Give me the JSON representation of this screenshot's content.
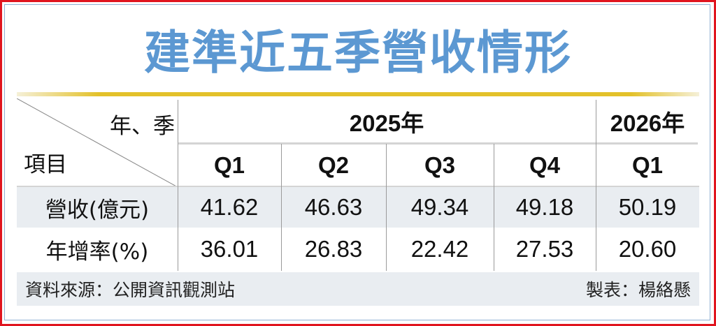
{
  "title": "建準近五季營收情形",
  "colors": {
    "title": "#5c98d2",
    "frame": "#e0141e",
    "rule": "#e3c12a",
    "row_shade": "#e9edf1"
  },
  "table": {
    "corner_top": "年、季",
    "corner_bottom": "項目",
    "years": [
      {
        "label": "2025年"
      },
      {
        "label": "2026年"
      }
    ],
    "quarters": [
      "Q1",
      "Q2",
      "Q3",
      "Q4",
      "Q1"
    ],
    "rows": [
      {
        "label": "營收(億元)",
        "values": [
          "41.62",
          "46.63",
          "49.34",
          "49.18",
          "50.19"
        ]
      },
      {
        "label": "年增率(%)",
        "values": [
          "36.01",
          "26.83",
          "22.42",
          "27.53",
          "20.60"
        ]
      }
    ]
  },
  "footer": {
    "source": "資料來源：公開資訊觀測站",
    "author": "製表：楊絡懸"
  }
}
